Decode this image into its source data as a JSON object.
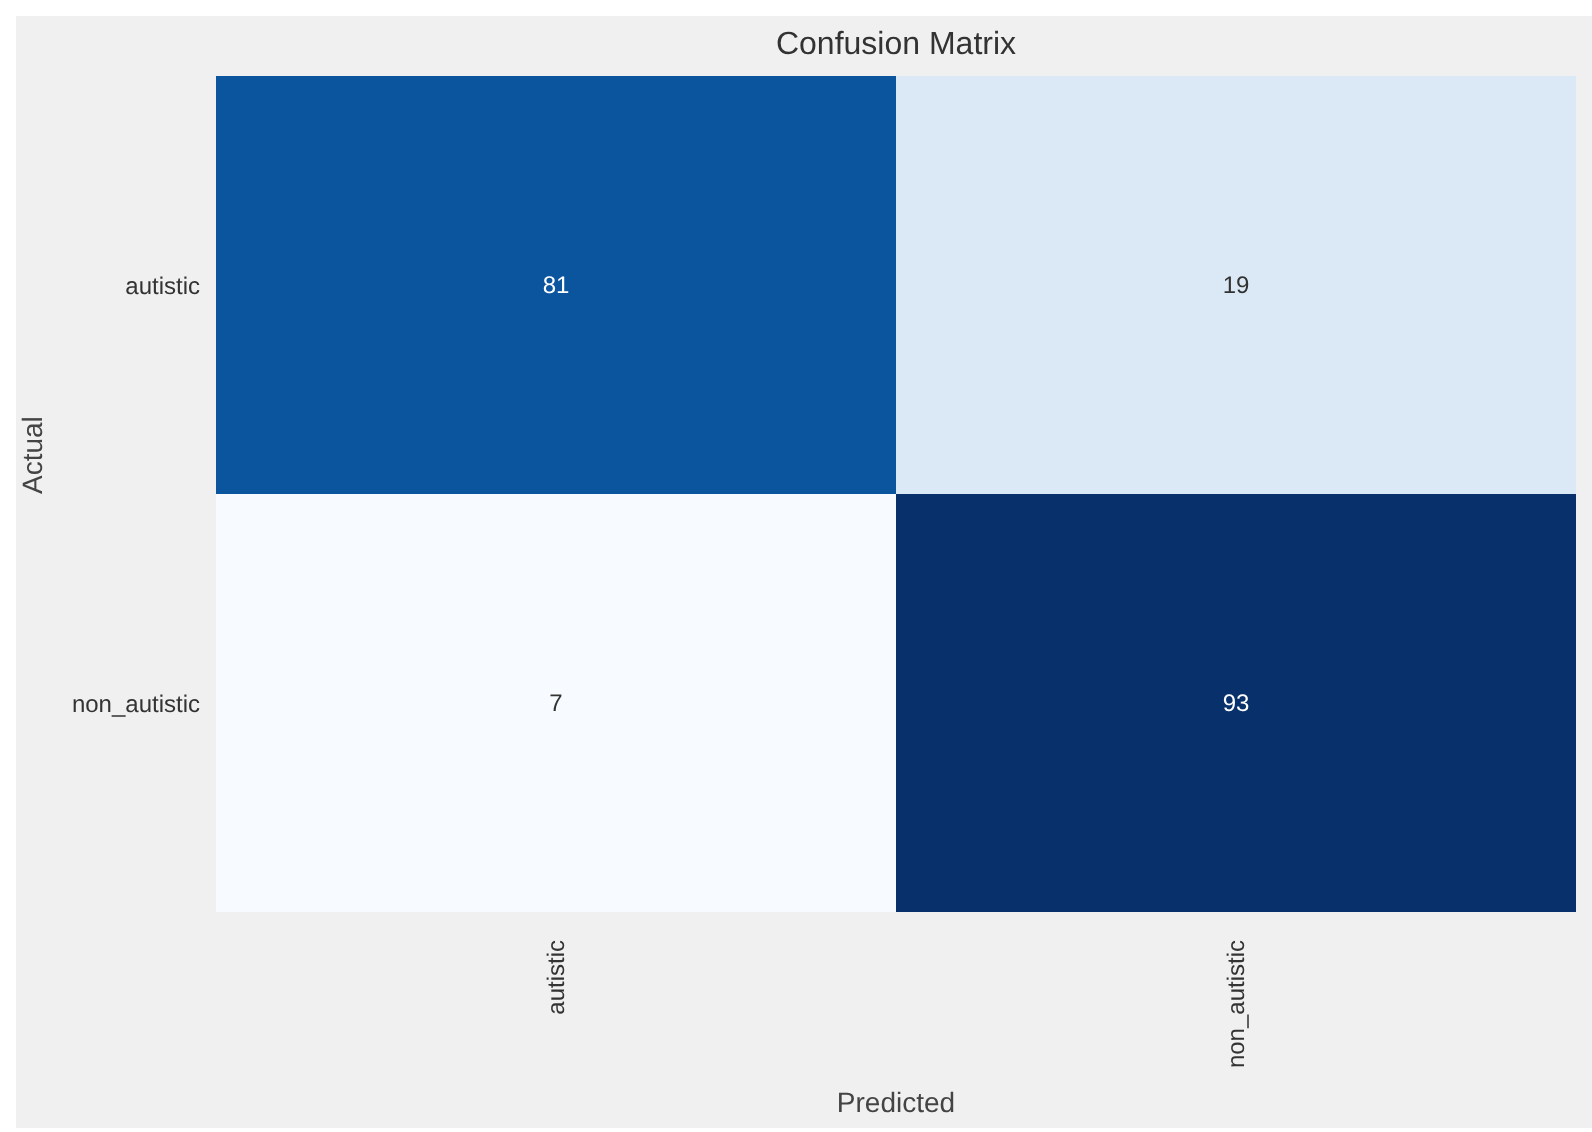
{
  "chart_data": {
    "type": "heatmap",
    "title": "Confusion Matrix",
    "xlabel": "Predicted",
    "ylabel": "Actual",
    "data_labels": true,
    "categories": [
      "autistic",
      "non_autistic"
    ],
    "y_categories": [
      "autistic",
      "non_autistic"
    ],
    "cells": [
      [
        81,
        19
      ],
      [
        7,
        93
      ]
    ]
  }
}
